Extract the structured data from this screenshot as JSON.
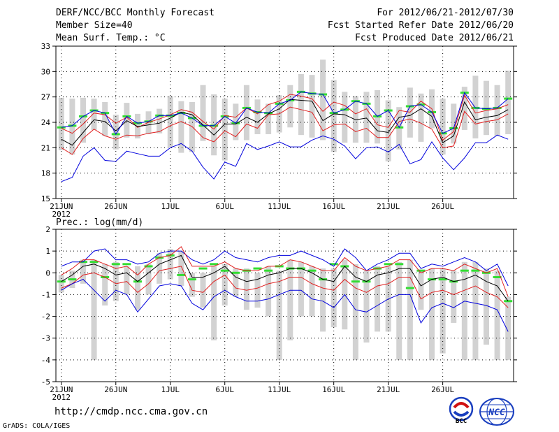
{
  "header": {
    "title": "DERF/NCC/BCC Monthly Forecast",
    "member_size": "Member Size=40",
    "variable": "Mean Surf. Temp.: °C",
    "period": "For 2012/06/21-2012/07/30",
    "start_date": "Fcst Started Refer Date 2012/06/20",
    "produced_date": "Fcst Produced Date 2012/06/21"
  },
  "footer": {
    "url": "http://cmdp.ncc.cma.gov.cn",
    "grads": "GrADS: COLA/IGES",
    "logo_bcc_text": "BCC",
    "logo_ncc_text": "NCC"
  },
  "colors": {
    "ensemble_mean": "#000000",
    "spread": "#e02020",
    "extremes": "#0000dd",
    "climatology": "#33dd33",
    "box": "#d2d2d2"
  },
  "chart_data": [
    {
      "type": "line",
      "title": "Mean Surf. Temp.: °C",
      "x_tick_labels": [
        "21JUN",
        "26JUN",
        "1JUL",
        "6JUL",
        "11JUL",
        "16JUL",
        "21JUL",
        "26JUL"
      ],
      "x_year_label": "2012",
      "x_tick_days": [
        0,
        5,
        10,
        15,
        20,
        25,
        30,
        35
      ],
      "ylim": [
        15,
        33
      ],
      "yticks": [
        15,
        18,
        21,
        24,
        27,
        30,
        33
      ],
      "grid": true,
      "series": [
        {
          "name": "max",
          "values": [
            17,
            17.5,
            20,
            21,
            19.5,
            19.4,
            20.6,
            20.3,
            20,
            20,
            21,
            21.5,
            20.6,
            18.7,
            17.3,
            19.3,
            18.8,
            21.5,
            20.8,
            21.2,
            21.7,
            21.1,
            21.1,
            21.9,
            22.4,
            22,
            21.2,
            19.7,
            21,
            21.1,
            20.5,
            21.4,
            19.1,
            19.6,
            21.7,
            19.8,
            18.4,
            19.8,
            21.6,
            21.6,
            22.5,
            22
          ]
        },
        {
          "name": "upper",
          "values": [
            23.3,
            22.7,
            23.8,
            25.1,
            24.9,
            23.9,
            24.6,
            23.4,
            24,
            24.4,
            24.9,
            25.5,
            25.2,
            24.1,
            23.2,
            24.8,
            24.6,
            25.7,
            25,
            26.1,
            26.5,
            27.3,
            27.1,
            26.8,
            25.3,
            26.4,
            26,
            25,
            25.6,
            23.7,
            23.4,
            25.4,
            25.2,
            26.5,
            25.6,
            21.9,
            22.9,
            27.2,
            25.1,
            25.4,
            25.6,
            26.1
          ]
        },
        {
          "name": "mean",
          "values": [
            22,
            21.3,
            22.8,
            24.3,
            24.1,
            23,
            24.2,
            23.5,
            23.7,
            23.9,
            24.5,
            25.2,
            24.9,
            23.7,
            22.5,
            23.8,
            23.8,
            24.6,
            24,
            25,
            25.6,
            26.7,
            26.6,
            26.5,
            24.2,
            25,
            24.9,
            24.3,
            24.5,
            23,
            22.8,
            24.6,
            24.8,
            25.6,
            24.7,
            21.6,
            22.4,
            26.4,
            24.3,
            24.6,
            24.8,
            25.5
          ]
        },
        {
          "name": "lower",
          "values": [
            21,
            20.2,
            22.1,
            23.2,
            22.4,
            22,
            22.5,
            22.4,
            22.7,
            22.9,
            23.6,
            24.1,
            23.5,
            22.2,
            21.7,
            23,
            22.3,
            23.8,
            23.3,
            24.9,
            25,
            25.8,
            25.5,
            25.2,
            23,
            23.7,
            23.8,
            22.9,
            23.3,
            22.2,
            22.2,
            24.1,
            24.4,
            23.9,
            23.2,
            21,
            21.2,
            25.3,
            23.8,
            24.1,
            24.3,
            25
          ]
        },
        {
          "name": "min",
          "values": [
            23.4,
            23.6,
            24.7,
            25.4,
            25.1,
            22.6,
            24.7,
            23.9,
            24.1,
            24.8,
            24.8,
            25.1,
            24.5,
            23.6,
            23.6,
            24.7,
            23.9,
            25.7,
            25.2,
            25.1,
            26.2,
            26.6,
            27.6,
            27.4,
            27.3,
            25.1,
            25.5,
            26.5,
            26.2,
            24.7,
            25.4,
            23.4,
            25.9,
            26.1,
            25.2,
            22.7,
            23.3,
            27.5,
            25.7,
            25.6,
            25.7,
            26.8
          ]
        },
        {
          "name": "climatology",
          "values": [
            23.4,
            23.6,
            24.7,
            25.4,
            25.1,
            22.6,
            24.7,
            23.9,
            24.1,
            24.8,
            24.8,
            25.1,
            24.5,
            23.6,
            23.6,
            24.7,
            23.9,
            25.7,
            25.2,
            25.1,
            26.2,
            26.6,
            27.6,
            27.4,
            27.3,
            25.1,
            25.5,
            26.5,
            26.2,
            24.7,
            25.4,
            23.4,
            25.9,
            26.1,
            25.2,
            22.7,
            23.3,
            27.5,
            25.7,
            25.6,
            25.7,
            26.8
          ]
        }
      ],
      "box_ranges": [
        [
          20.7,
          26.9
        ],
        [
          20.2,
          26.8
        ],
        [
          21.6,
          26.9
        ],
        [
          23.1,
          26.8
        ],
        [
          22.4,
          26.4
        ],
        [
          20.8,
          24.9
        ],
        [
          22.2,
          26.3
        ],
        [
          22.1,
          25
        ],
        [
          22.6,
          25.3
        ],
        [
          22.7,
          25.6
        ],
        [
          21.1,
          27.1
        ],
        [
          20.4,
          26.5
        ],
        [
          20.5,
          26.4
        ],
        [
          21.8,
          28.4
        ],
        [
          20.1,
          27.3
        ],
        [
          19.5,
          26.8
        ],
        [
          21.9,
          26.2
        ],
        [
          21.9,
          28.4
        ],
        [
          22.6,
          26.7
        ],
        [
          22.6,
          26.2
        ],
        [
          22.8,
          27.2
        ],
        [
          23.4,
          28.4
        ],
        [
          22.5,
          29.7
        ],
        [
          22.2,
          29.6
        ],
        [
          21.9,
          31.4
        ],
        [
          20.5,
          29
        ],
        [
          21.6,
          27.6
        ],
        [
          21.6,
          27.1
        ],
        [
          21.6,
          27.6
        ],
        [
          21.5,
          27.8
        ],
        [
          19.4,
          26.6
        ],
        [
          20.8,
          25.8
        ],
        [
          22.2,
          28.1
        ],
        [
          21.7,
          27.4
        ],
        [
          23.3,
          27.9
        ],
        [
          20.2,
          26.8
        ],
        [
          21.5,
          26.2
        ],
        [
          23.1,
          28.2
        ],
        [
          22.1,
          29.5
        ],
        [
          22.5,
          28.9
        ],
        [
          22.4,
          28.4
        ],
        [
          22.6,
          30.1
        ]
      ]
    },
    {
      "type": "line",
      "title": "Prec.: log(mm/d)",
      "x_tick_labels": [
        "21JUN",
        "26JUN",
        "1JUL",
        "6JUL",
        "11JUL",
        "16JUL",
        "21JUL",
        "26JUL"
      ],
      "x_year_label": "2012",
      "x_tick_days": [
        0,
        5,
        10,
        15,
        20,
        25,
        30,
        35
      ],
      "ylim": [
        -5,
        2
      ],
      "yticks": [
        -5,
        -4,
        -3,
        -2,
        -1,
        0,
        1,
        2
      ],
      "grid": true,
      "series": [
        {
          "name": "max",
          "values": [
            0.3,
            0.5,
            0.5,
            1,
            1.1,
            0.6,
            0.6,
            0.4,
            0.5,
            0.9,
            1,
            1,
            0.6,
            0.4,
            0.6,
            1,
            0.7,
            0.6,
            0.5,
            0.7,
            0.8,
            0.8,
            1,
            0.8,
            0.6,
            0.3,
            1.1,
            0.7,
            0.1,
            0.4,
            0.6,
            0.9,
            0.9,
            0.2,
            0.4,
            0.3,
            0.5,
            0.7,
            0.5,
            0.1,
            0.4,
            -0.6
          ]
        },
        {
          "name": "upper",
          "values": [
            -0.1,
            0.2,
            0.6,
            0.6,
            0.4,
            0.2,
            0.3,
            -0.1,
            0.4,
            0.7,
            0.8,
            1.2,
            0.3,
            0.3,
            0.3,
            0.5,
            0.2,
            0.1,
            0.1,
            0.3,
            0.3,
            0.6,
            0.5,
            0.3,
            0.1,
            0.1,
            0.7,
            0.3,
            0.1,
            0.2,
            0.3,
            0.6,
            0.6,
            0,
            0.2,
            0.2,
            0.1,
            0.4,
            0.2,
            0,
            0.2,
            -1.1
          ]
        },
        {
          "name": "mean",
          "values": [
            -0.4,
            -0.1,
            0.3,
            0.4,
            0.2,
            -0.1,
            0,
            -0.4,
            0,
            0.4,
            0.6,
            0.8,
            -0.2,
            -0.2,
            0,
            0.3,
            -0.2,
            -0.4,
            -0.3,
            -0.1,
            0,
            0.2,
            0.2,
            0,
            -0.3,
            -0.4,
            0.3,
            -0.2,
            -0.4,
            -0.1,
            0,
            0.2,
            0.2,
            -0.6,
            -0.3,
            -0.2,
            -0.4,
            -0.3,
            -0.1,
            -0.4,
            -0.6,
            -1.3
          ]
        },
        {
          "name": "lower",
          "values": [
            -0.7,
            -0.5,
            -0.1,
            0,
            -0.2,
            -0.5,
            -0.4,
            -0.9,
            -0.5,
            0.1,
            0.2,
            0.3,
            -0.8,
            -0.9,
            -0.4,
            -0.1,
            -0.7,
            -0.8,
            -0.7,
            -0.5,
            -0.4,
            -0.2,
            -0.2,
            -0.5,
            -0.7,
            -0.8,
            -0.3,
            -0.7,
            -0.9,
            -0.6,
            -0.5,
            -0.2,
            -0.2,
            -1.2,
            -0.9,
            -0.8,
            -1,
            -0.8,
            -0.6,
            -0.9,
            -1.1,
            -1.6
          ]
        },
        {
          "name": "min",
          "values": [
            -0.8,
            -0.5,
            -0.3,
            -0.8,
            -1.3,
            -0.8,
            -1,
            -1.8,
            -1.2,
            -0.6,
            -0.5,
            -0.6,
            -1.4,
            -1.7,
            -1.1,
            -0.8,
            -1.1,
            -1.3,
            -1.3,
            -1.2,
            -1,
            -0.8,
            -0.8,
            -1.2,
            -1.3,
            -1.6,
            -1,
            -1.7,
            -1.8,
            -1.5,
            -1.2,
            -1,
            -1,
            -2.3,
            -1.6,
            -1.4,
            -1.6,
            -1.3,
            -1.4,
            -1.5,
            -1.7,
            -2.7
          ]
        },
        {
          "name": "climatology",
          "values": [
            -0.4,
            -0.3,
            0.5,
            0.5,
            -0.2,
            0.4,
            0.4,
            -0.4,
            0.3,
            0.7,
            0.8,
            -0.1,
            -0.3,
            0.2,
            0.4,
            0.1,
            0,
            0.1,
            0.2,
            0.1,
            0.3,
            0.2,
            0.2,
            0.1,
            -0.3,
            0.4,
            0.3,
            -0.4,
            -0.4,
            0.2,
            0.4,
            0.4,
            -0.7,
            0.1,
            -0.3,
            -0.3,
            -0.4,
            0.1,
            0.1,
            0,
            -0.2,
            -1.3
          ]
        }
      ],
      "box_ranges": [
        [
          -0.9,
          -0.1
        ],
        [
          -0.7,
          0.1
        ],
        [
          -0.5,
          0.6
        ],
        [
          -4,
          0.6
        ],
        [
          -1.5,
          0.4
        ],
        [
          -1.3,
          0.5
        ],
        [
          -1,
          0.3
        ],
        [
          -1.7,
          0.3
        ],
        [
          -1,
          0.4
        ],
        [
          -0.5,
          0.9
        ],
        [
          -0.3,
          1.1
        ],
        [
          -0.6,
          1
        ],
        [
          -1.1,
          0
        ],
        [
          -1.6,
          0
        ],
        [
          -3.1,
          0.3
        ],
        [
          -1.5,
          0.4
        ],
        [
          -1.1,
          0.2
        ],
        [
          -1.7,
          0.2
        ],
        [
          -1.6,
          0
        ],
        [
          -2,
          0.3
        ],
        [
          -4,
          0.1
        ],
        [
          -3.1,
          0.6
        ],
        [
          -2,
          0.5
        ],
        [
          -2,
          0.3
        ],
        [
          -2.7,
          0.2
        ],
        [
          -2.5,
          0.2
        ],
        [
          -2.6,
          0.6
        ],
        [
          -4,
          0.4
        ],
        [
          -3.2,
          0.1
        ],
        [
          -2.7,
          0.3
        ],
        [
          -2.7,
          0.3
        ],
        [
          -4,
          0.5
        ],
        [
          -4,
          0.6
        ],
        [
          -1.7,
          0.1
        ],
        [
          -4,
          0.2
        ],
        [
          -3.7,
          0.2
        ],
        [
          -2.3,
          0.1
        ],
        [
          -4,
          0.5
        ],
        [
          -4,
          0.5
        ],
        [
          -3.3,
          0.2
        ],
        [
          -4,
          0.1
        ],
        [
          -4,
          -1.1
        ]
      ]
    }
  ]
}
